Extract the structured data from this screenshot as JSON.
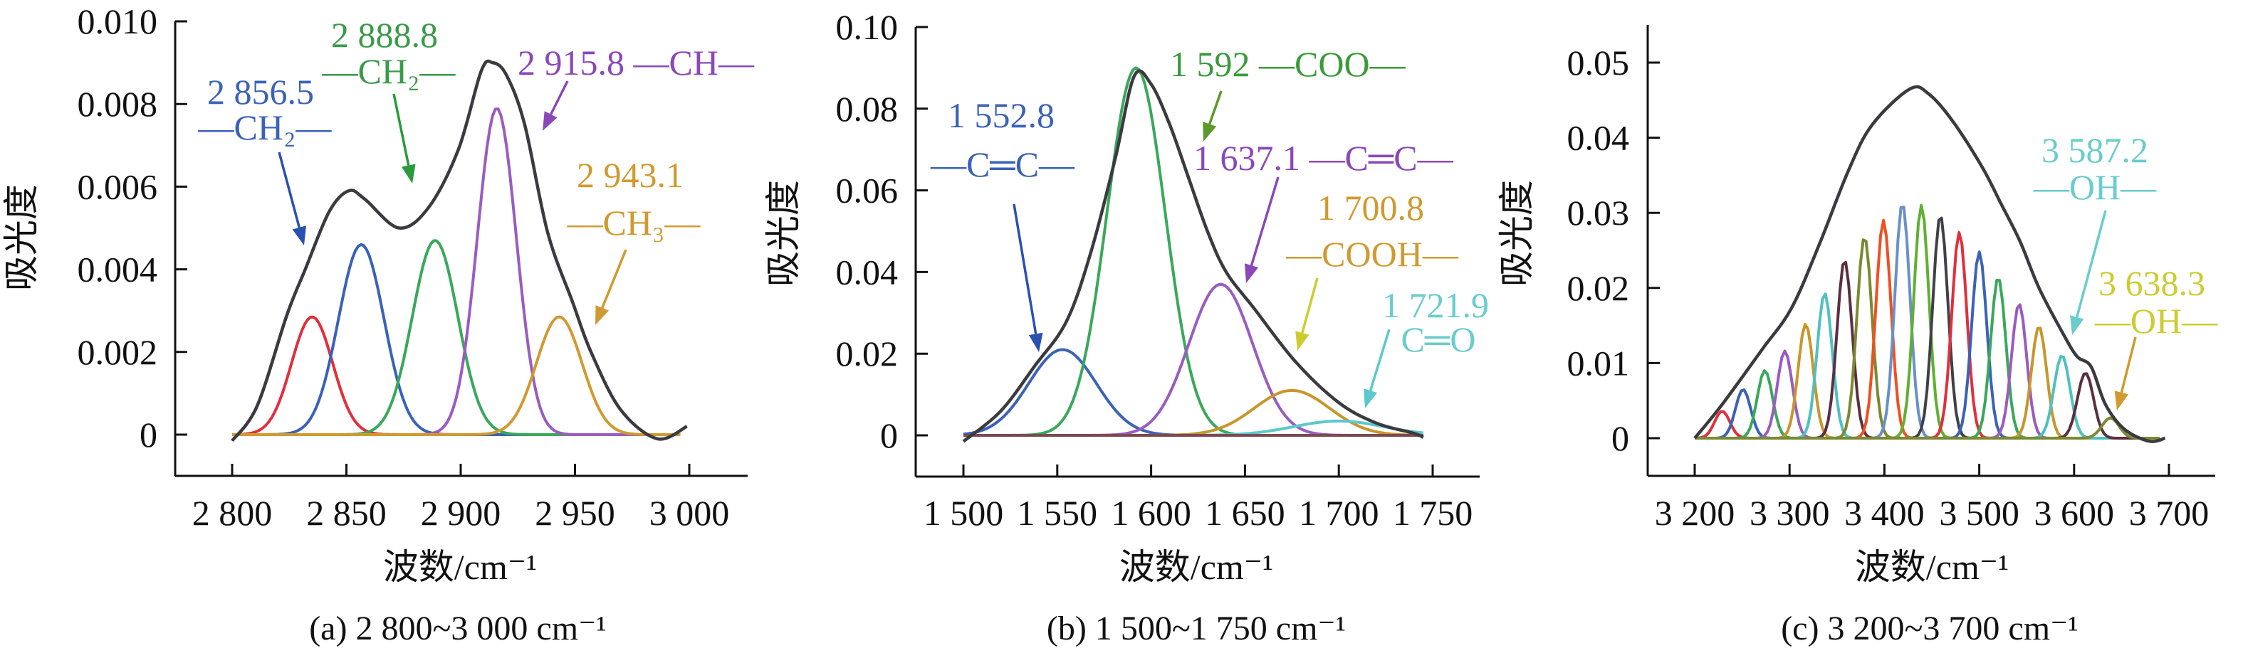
{
  "chart_data": [
    {
      "type": "line",
      "caption": "(a) 2 800~3 000 cm⁻¹",
      "xlabel": "波数/cm⁻¹",
      "ylabel": "吸光度",
      "xlim": [
        2800,
        3000
      ],
      "ylim": [
        0,
        0.01
      ],
      "xticks": [
        2800,
        2850,
        2900,
        2950,
        3000
      ],
      "xtick_labels": [
        "2 800",
        "2 850",
        "2 900",
        "2 950",
        "3 000"
      ],
      "yticks": [
        0,
        0.002,
        0.004,
        0.006,
        0.008,
        0.01
      ],
      "ytick_labels": [
        "0",
        "0.002",
        "0.004",
        "0.006",
        "0.008",
        "0.010"
      ],
      "grid": false,
      "total": {
        "color": "#3a3a40",
        "x": [
          2800,
          2811,
          2824,
          2832,
          2842.5,
          2851,
          2858,
          2873,
          2886,
          2899,
          2909,
          2914,
          2920,
          2928,
          2938,
          2949,
          2957,
          2970,
          2986,
          2999
        ],
        "y": [
          -0.00015,
          0.0007,
          0.0029,
          0.004,
          0.0054,
          0.0059,
          0.0057,
          0.005,
          0.0055,
          0.0069,
          0.0088,
          0.009,
          0.0087,
          0.0075,
          0.0049,
          0.0032,
          0.002,
          0.0006,
          -0.0001,
          0.0002
        ]
      },
      "components": [
        {
          "center": 2835,
          "amplitude": 0.00285,
          "sigma": 9,
          "color": "#e0303c"
        },
        {
          "center": 2856.5,
          "amplitude": 0.0046,
          "sigma": 10,
          "color": "#3a62b8"
        },
        {
          "center": 2888.8,
          "amplitude": 0.0047,
          "sigma": 10,
          "color": "#3aa85a"
        },
        {
          "center": 2915.8,
          "amplitude": 0.0079,
          "sigma": 8.5,
          "color": "#9a5cc0"
        },
        {
          "center": 2943.1,
          "amplitude": 0.00285,
          "sigma": 10,
          "color": "#d09a30"
        }
      ],
      "annotations": [
        {
          "value": "2 856.5",
          "group": "—CH₂—",
          "color": "#3a62b8",
          "arrow_color": "#2a50b0"
        },
        {
          "value": "2 888.8",
          "group": "—CH₂—",
          "color": "#3a9a4a",
          "arrow_color": "#2a9a3a"
        },
        {
          "value": "2 915.8 —CH—",
          "group": "",
          "color": "#8a48b8",
          "arrow_color": "#8a48b8"
        },
        {
          "value": "2 943.1",
          "group": "—CH₃—",
          "color": "#d09a30",
          "arrow_color": "#d09a30"
        }
      ]
    },
    {
      "type": "line",
      "caption": "(b) 1 500~1 750 cm⁻¹",
      "xlabel": "波数/cm⁻¹",
      "ylabel": "吸光度",
      "xlim": [
        1500,
        1750
      ],
      "ylim": [
        0,
        0.1
      ],
      "xticks": [
        1500,
        1550,
        1600,
        1650,
        1700,
        1750
      ],
      "xtick_labels": [
        "1 500",
        "1 550",
        "1 600",
        "1 650",
        "1 700",
        "1 750"
      ],
      "yticks": [
        0,
        0.02,
        0.04,
        0.06,
        0.08,
        0.1
      ],
      "ytick_labels": [
        "0",
        "0.02",
        "0.04",
        "0.06",
        "0.08",
        "0.10"
      ],
      "grid": false,
      "total": {
        "color": "#3a3a40",
        "x": [
          1500,
          1520,
          1538,
          1555,
          1568,
          1581,
          1591,
          1600,
          1610,
          1620,
          1630,
          1640,
          1655,
          1677,
          1700,
          1720,
          1740,
          1745
        ],
        "y": [
          -0.0015,
          0.006,
          0.017,
          0.028,
          0.045,
          0.068,
          0.088,
          0.086,
          0.076,
          0.063,
          0.05,
          0.04,
          0.031,
          0.018,
          0.008,
          0.003,
          0.0005,
          -0.0005
        ]
      },
      "components": [
        {
          "center": 1552.8,
          "amplitude": 0.021,
          "sigma": 18,
          "color": "#3a62b8"
        },
        {
          "center": 1592,
          "amplitude": 0.09,
          "sigma": 15.5,
          "color": "#3aa85a"
        },
        {
          "center": 1637.1,
          "amplitude": 0.037,
          "sigma": 17,
          "color": "#9a5cc0"
        },
        {
          "center": 1675,
          "amplitude": 0.011,
          "sigma": 20,
          "color": "#c8962a"
        },
        {
          "center": 1700,
          "amplitude": 0.0035,
          "sigma": 24,
          "color": "#5cc8cc"
        },
        {
          "center": 1620,
          "amplitude": 0,
          "sigma": 10,
          "color": "#7a4a50"
        }
      ],
      "annotations": [
        {
          "value": "1 552.8",
          "group": "—C═C—",
          "color": "#3a62b8",
          "arrow_color": "#2a50b0"
        },
        {
          "value": "1 592 —COO—",
          "group": "",
          "color": "#3a9a3a",
          "arrow_color": "#5a9a2a"
        },
        {
          "value": "1 637.1 —C═C—",
          "group": "",
          "color": "#8a48b8",
          "arrow_color": "#8a48b8"
        },
        {
          "value": "1 700.8",
          "group": "—COOH—",
          "color": "#d09a30",
          "arrow_color": "#cccc30"
        },
        {
          "value": "1 721.9",
          "group": "C═O",
          "color": "#6acccc",
          "arrow_color": "#5cc8cc"
        }
      ]
    },
    {
      "type": "line",
      "caption": "(c) 3 200~3 700 cm⁻¹",
      "xlabel": "波数/cm⁻¹",
      "ylabel": "吸光度",
      "xlim": [
        3200,
        3700
      ],
      "ylim": [
        0,
        0.05
      ],
      "xticks": [
        3200,
        3300,
        3400,
        3500,
        3600,
        3700
      ],
      "xtick_labels": [
        "3 200",
        "3 300",
        "3 400",
        "3 500",
        "3 600",
        "3 700"
      ],
      "yticks": [
        0,
        0.01,
        0.02,
        0.03,
        0.04,
        0.05
      ],
      "ytick_labels": [
        "0",
        "0.01",
        "0.02",
        "0.03",
        "0.04",
        "0.05"
      ],
      "grid": false,
      "total": {
        "color": "#3a3a40",
        "x": [
          3200,
          3229,
          3271,
          3302,
          3332,
          3362,
          3387,
          3427,
          3447,
          3472,
          3503,
          3523,
          3543,
          3563,
          3588,
          3603,
          3618,
          3633,
          3653,
          3679,
          3696
        ],
        "y": [
          0,
          0.0045,
          0.0118,
          0.0173,
          0.026,
          0.0356,
          0.0417,
          0.0465,
          0.0458,
          0.0422,
          0.0361,
          0.0312,
          0.0262,
          0.02,
          0.014,
          0.0109,
          0.0095,
          0.0045,
          0.0012,
          -0.0004,
          0
        ]
      },
      "components": [
        {
          "center": 3229,
          "amplitude": 0.0036,
          "sigma": 8,
          "color": "#e0303c"
        },
        {
          "center": 3251,
          "amplitude": 0.0065,
          "sigma": 8,
          "color": "#3a62b8"
        },
        {
          "center": 3274,
          "amplitude": 0.009,
          "sigma": 8,
          "color": "#3aa85a"
        },
        {
          "center": 3295,
          "amplitude": 0.0116,
          "sigma": 8,
          "color": "#9a5cc0"
        },
        {
          "center": 3317,
          "amplitude": 0.0152,
          "sigma": 8,
          "color": "#c8962a"
        },
        {
          "center": 3337,
          "amplitude": 0.0193,
          "sigma": 8,
          "color": "#50c0c0"
        },
        {
          "center": 3358,
          "amplitude": 0.0237,
          "sigma": 8,
          "color": "#5a3040"
        },
        {
          "center": 3379,
          "amplitude": 0.0268,
          "sigma": 8,
          "color": "#7a8a30"
        },
        {
          "center": 3399,
          "amplitude": 0.029,
          "sigma": 8,
          "color": "#f05020"
        },
        {
          "center": 3419,
          "amplitude": 0.0313,
          "sigma": 8,
          "color": "#6a90c8"
        },
        {
          "center": 3439,
          "amplitude": 0.031,
          "sigma": 8,
          "color": "#60b030"
        },
        {
          "center": 3459,
          "amplitude": 0.0297,
          "sigma": 8,
          "color": "#404048"
        },
        {
          "center": 3479,
          "amplitude": 0.0274,
          "sigma": 8,
          "color": "#e0303c"
        },
        {
          "center": 3500,
          "amplitude": 0.0248,
          "sigma": 8,
          "color": "#3a62b8"
        },
        {
          "center": 3520,
          "amplitude": 0.0214,
          "sigma": 8,
          "color": "#3aa85a"
        },
        {
          "center": 3542,
          "amplitude": 0.0179,
          "sigma": 8,
          "color": "#9a5cc0"
        },
        {
          "center": 3563,
          "amplitude": 0.0149,
          "sigma": 8,
          "color": "#c8962a"
        },
        {
          "center": 3587.2,
          "amplitude": 0.011,
          "sigma": 8.5,
          "color": "#50c0c0"
        },
        {
          "center": 3612,
          "amplitude": 0.0087,
          "sigma": 8.5,
          "color": "#5a3040"
        },
        {
          "center": 3638.3,
          "amplitude": 0.0027,
          "sigma": 9,
          "color": "#7a8a30"
        }
      ],
      "annotations": [
        {
          "value": "3 587.2",
          "group": "—OH—",
          "color": "#6acccc",
          "arrow_color": "#6acccc"
        },
        {
          "value": "3 638.3",
          "group": "—OH—",
          "color": "#cccc30",
          "arrow_color": "#d09a30"
        }
      ]
    }
  ]
}
